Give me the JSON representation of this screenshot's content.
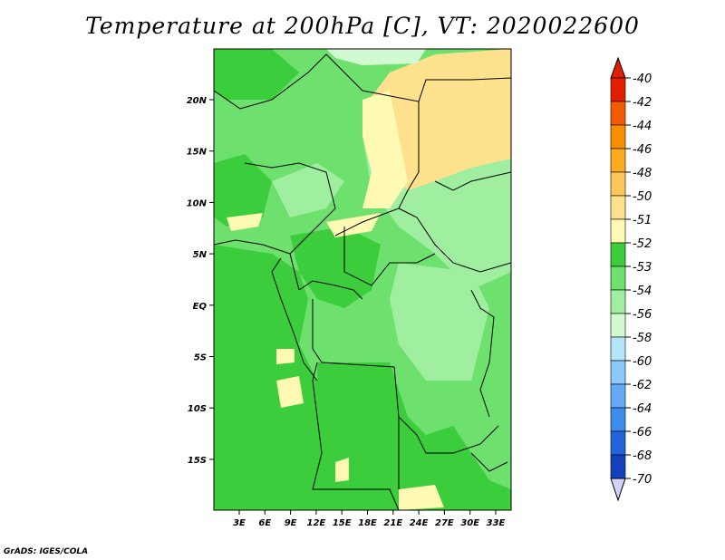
{
  "title": "Temperature at 200hPa [C], VT: 2020022600",
  "credit": "GrADS: IGES/COLA",
  "map": {
    "lon_labels": [
      "3E",
      "6E",
      "9E",
      "12E",
      "15E",
      "18E",
      "21E",
      "24E",
      "27E",
      "30E",
      "33E"
    ],
    "lat_labels": [
      "20N",
      "15N",
      "10N",
      "5N",
      "EQ",
      "5S",
      "10S",
      "15S"
    ]
  },
  "colorbar": {
    "levels": [
      {
        "label": "-40",
        "color": "#e11e00"
      },
      {
        "label": "-42",
        "color": "#f55a00"
      },
      {
        "label": "-44",
        "color": "#fa8c00"
      },
      {
        "label": "-46",
        "color": "#fdaa1e"
      },
      {
        "label": "-48",
        "color": "#fdc75a"
      },
      {
        "label": "-50",
        "color": "#fde18c"
      },
      {
        "label": "-51",
        "color": "#fefab4"
      },
      {
        "label": "-52",
        "color": "#3ccd3c"
      },
      {
        "label": "-53",
        "color": "#6ee06e"
      },
      {
        "label": "-54",
        "color": "#a0eea0"
      },
      {
        "label": "-56",
        "color": "#d2fad2"
      },
      {
        "label": "-58",
        "color": "#b4e6fa"
      },
      {
        "label": "-60",
        "color": "#8cc8fa"
      },
      {
        "label": "-62",
        "color": "#64aaf5"
      },
      {
        "label": "-64",
        "color": "#3c8ced"
      },
      {
        "label": "-66",
        "color": "#2364dc"
      },
      {
        "label": "-68",
        "color": "#1441be"
      },
      {
        "label": "-70",
        "color": "#0a1e82"
      }
    ],
    "top_color": "#e11e00",
    "bottom_color": "#d2d2fa"
  }
}
